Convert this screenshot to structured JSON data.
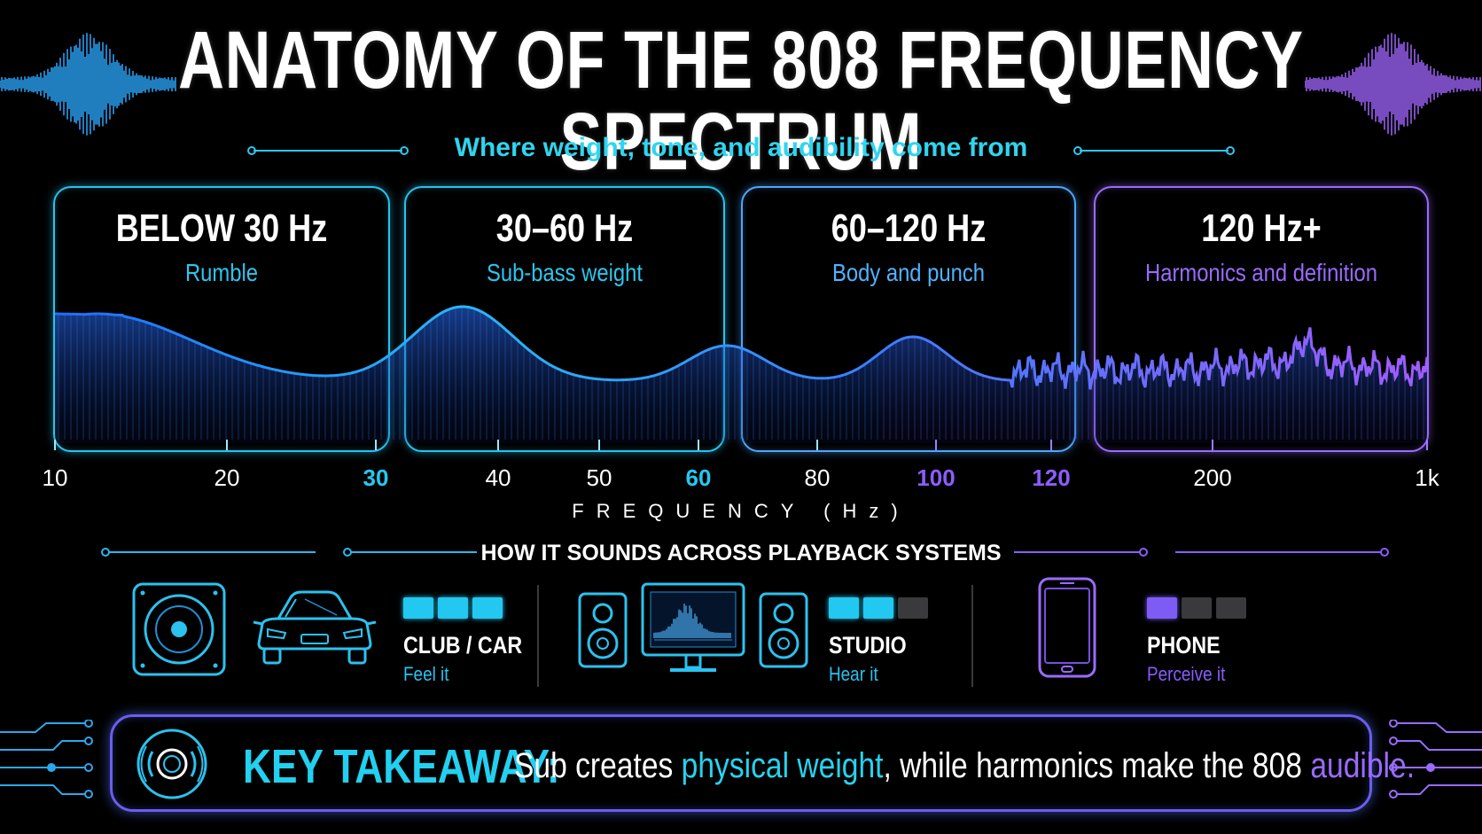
{
  "title": "ANATOMY OF THE 808 FREQUENCY SPECTRUM",
  "subtitle": "Where weight, tone, and audibility come from",
  "bands": [
    {
      "range": "BELOW 30 Hz",
      "description": "Rumble",
      "color": "#27c3f0"
    },
    {
      "range": "30–60 Hz",
      "description": "Sub-bass weight",
      "color": "#27c3f0"
    },
    {
      "range": "60–120 Hz",
      "description": "Body and punch",
      "color": "#4ea5ff"
    },
    {
      "range": "120 Hz+",
      "description": "Harmonics and definition",
      "color": "#9a6bff"
    }
  ],
  "axis": {
    "ticks": [
      {
        "label": "10",
        "value": 10,
        "style": "plain"
      },
      {
        "label": "20",
        "value": 20,
        "style": "plain"
      },
      {
        "label": "30",
        "value": 30,
        "style": "cyan"
      },
      {
        "label": "40",
        "value": 40,
        "style": "plain"
      },
      {
        "label": "50",
        "value": 50,
        "style": "plain"
      },
      {
        "label": "60",
        "value": 60,
        "style": "cyan"
      },
      {
        "label": "80",
        "value": 80,
        "style": "plain"
      },
      {
        "label": "100",
        "value": 100,
        "style": "violet"
      },
      {
        "label": "120",
        "value": 120,
        "style": "violet"
      },
      {
        "label": "200",
        "value": 200,
        "style": "plain"
      },
      {
        "label": "1k",
        "value": 1000,
        "style": "plain"
      }
    ],
    "label": "FREQUENCY (Hz)"
  },
  "playback": {
    "heading": "HOW IT SOUNDS ACROSS PLAYBACK SYSTEMS",
    "systems": [
      {
        "name": "CLUB / CAR",
        "description": "Feel it",
        "level": 3,
        "max": 3,
        "color": "#22c8ef"
      },
      {
        "name": "STUDIO",
        "description": "Hear it",
        "level": 2,
        "max": 3,
        "color": "#22c8ef"
      },
      {
        "name": "PHONE",
        "description": "Perceive it",
        "level": 1,
        "max": 3,
        "color": "#7c5cf5"
      }
    ]
  },
  "takeaway": {
    "key": "KEY TAKEAWAY:",
    "part1": "Sub creates ",
    "highlight1": "physical weight",
    "part2": ", while harmonics make the 808 ",
    "highlight2": "audible."
  }
}
